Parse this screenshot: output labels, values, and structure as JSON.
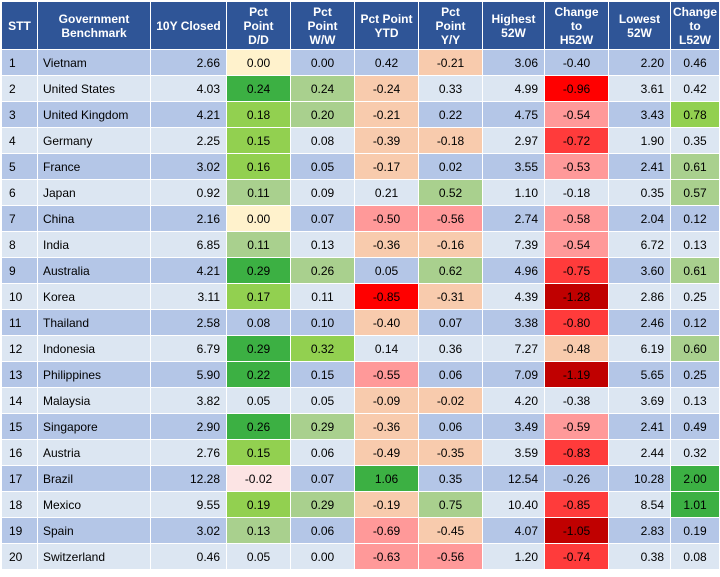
{
  "colors": {
    "header_bg": "#2f5597",
    "row_odd": "#b4c6e7",
    "row_even": "#dce6f2",
    "neutral_yellow": "#fff2cc",
    "green_lightest": "#e2efda",
    "green_light": "#c6e0b4",
    "green_mid": "#a9d08e",
    "green_lime": "#92d050",
    "green_strong": "#70ad47",
    "green_dark": "#3cb043",
    "red_lightest": "#fce4e4",
    "red_light": "#f8cbad",
    "red_mid": "#ff9999",
    "red_strong": "#ff3b3b",
    "red_bright": "#ff0000",
    "red_dark": "#c00000"
  },
  "table": {
    "headers": [
      "STT",
      "Government\nBenchmark",
      "10Y Closed",
      "Pct\nPoint\nD/D",
      "Pct\nPoint\nW/W",
      "Pct Point\nYTD",
      "Pct\nPoint\nY/Y",
      "Highest\n52W",
      "Change\nto\nH52W",
      "Lowest\n52W",
      "Change\nto\nL52W"
    ],
    "rows": [
      {
        "stt": "1",
        "name": "Vietnam",
        "closed": "2.66",
        "dd": "0.00",
        "ww": "0.00",
        "ytd": "0.42",
        "yy": "-0.21",
        "high": "3.06",
        "chigh": "-0.40",
        "low": "2.20",
        "clow": "0.46"
      },
      {
        "stt": "2",
        "name": "United States",
        "closed": "4.03",
        "dd": "0.24",
        "ww": "0.24",
        "ytd": "-0.24",
        "yy": "0.33",
        "high": "4.99",
        "chigh": "-0.96",
        "low": "3.61",
        "clow": "0.42"
      },
      {
        "stt": "3",
        "name": "United Kingdom",
        "closed": "4.21",
        "dd": "0.18",
        "ww": "0.20",
        "ytd": "-0.21",
        "yy": "0.22",
        "high": "4.75",
        "chigh": "-0.54",
        "low": "3.43",
        "clow": "0.78"
      },
      {
        "stt": "4",
        "name": "Germany",
        "closed": "2.25",
        "dd": "0.15",
        "ww": "0.08",
        "ytd": "-0.39",
        "yy": "-0.18",
        "high": "2.97",
        "chigh": "-0.72",
        "low": "1.90",
        "clow": "0.35"
      },
      {
        "stt": "5",
        "name": "France",
        "closed": "3.02",
        "dd": "0.16",
        "ww": "0.05",
        "ytd": "-0.17",
        "yy": "0.02",
        "high": "3.55",
        "chigh": "-0.53",
        "low": "2.41",
        "clow": "0.61"
      },
      {
        "stt": "6",
        "name": "Japan",
        "closed": "0.92",
        "dd": "0.11",
        "ww": "0.09",
        "ytd": "0.21",
        "yy": "0.52",
        "high": "1.10",
        "chigh": "-0.18",
        "low": "0.35",
        "clow": "0.57"
      },
      {
        "stt": "7",
        "name": "China",
        "closed": "2.16",
        "dd": "0.00",
        "ww": "0.07",
        "ytd": "-0.50",
        "yy": "-0.56",
        "high": "2.74",
        "chigh": "-0.58",
        "low": "2.04",
        "clow": "0.12"
      },
      {
        "stt": "8",
        "name": "India",
        "closed": "6.85",
        "dd": "0.11",
        "ww": "0.13",
        "ytd": "-0.36",
        "yy": "-0.16",
        "high": "7.39",
        "chigh": "-0.54",
        "low": "6.72",
        "clow": "0.13"
      },
      {
        "stt": "9",
        "name": "Australia",
        "closed": "4.21",
        "dd": "0.29",
        "ww": "0.26",
        "ytd": "0.05",
        "yy": "0.62",
        "high": "4.96",
        "chigh": "-0.75",
        "low": "3.60",
        "clow": "0.61"
      },
      {
        "stt": "10",
        "name": "Korea",
        "closed": "3.11",
        "dd": "0.17",
        "ww": "0.11",
        "ytd": "-0.85",
        "yy": "-0.31",
        "high": "4.39",
        "chigh": "-1.28",
        "low": "2.86",
        "clow": "0.25"
      },
      {
        "stt": "11",
        "name": "Thailand",
        "closed": "2.58",
        "dd": "0.08",
        "ww": "0.10",
        "ytd": "-0.40",
        "yy": "0.07",
        "high": "3.38",
        "chigh": "-0.80",
        "low": "2.46",
        "clow": "0.12"
      },
      {
        "stt": "12",
        "name": "Indonesia",
        "closed": "6.79",
        "dd": "0.29",
        "ww": "0.32",
        "ytd": "0.14",
        "yy": "0.36",
        "high": "7.27",
        "chigh": "-0.48",
        "low": "6.19",
        "clow": "0.60"
      },
      {
        "stt": "13",
        "name": "Philippines",
        "closed": "5.90",
        "dd": "0.22",
        "ww": "0.15",
        "ytd": "-0.55",
        "yy": "0.06",
        "high": "7.09",
        "chigh": "-1.19",
        "low": "5.65",
        "clow": "0.25"
      },
      {
        "stt": "14",
        "name": "Malaysia",
        "closed": "3.82",
        "dd": "0.05",
        "ww": "0.05",
        "ytd": "-0.09",
        "yy": "-0.02",
        "high": "4.20",
        "chigh": "-0.38",
        "low": "3.69",
        "clow": "0.13"
      },
      {
        "stt": "15",
        "name": "Singapore",
        "closed": "2.90",
        "dd": "0.26",
        "ww": "0.29",
        "ytd": "-0.36",
        "yy": "0.06",
        "high": "3.49",
        "chigh": "-0.59",
        "low": "2.41",
        "clow": "0.49"
      },
      {
        "stt": "16",
        "name": "Austria",
        "closed": "2.76",
        "dd": "0.15",
        "ww": "0.06",
        "ytd": "-0.49",
        "yy": "-0.35",
        "high": "3.59",
        "chigh": "-0.83",
        "low": "2.44",
        "clow": "0.32"
      },
      {
        "stt": "17",
        "name": "Brazil",
        "closed": "12.28",
        "dd": "-0.02",
        "ww": "0.07",
        "ytd": "1.06",
        "yy": "0.35",
        "high": "12.54",
        "chigh": "-0.26",
        "low": "10.28",
        "clow": "2.00"
      },
      {
        "stt": "18",
        "name": "Mexico",
        "closed": "9.55",
        "dd": "0.19",
        "ww": "0.29",
        "ytd": "-0.19",
        "yy": "0.75",
        "high": "10.40",
        "chigh": "-0.85",
        "low": "8.54",
        "clow": "1.01"
      },
      {
        "stt": "19",
        "name": "Spain",
        "closed": "3.02",
        "dd": "0.13",
        "ww": "0.06",
        "ytd": "-0.69",
        "yy": "-0.45",
        "high": "4.07",
        "chigh": "-1.05",
        "low": "2.83",
        "clow": "0.19"
      },
      {
        "stt": "20",
        "name": "Switzerland",
        "closed": "0.46",
        "dd": "0.05",
        "ww": "0.00",
        "ytd": "-0.63",
        "yy": "-0.56",
        "high": "1.20",
        "chigh": "-0.74",
        "low": "0.38",
        "clow": "0.08"
      }
    ]
  }
}
